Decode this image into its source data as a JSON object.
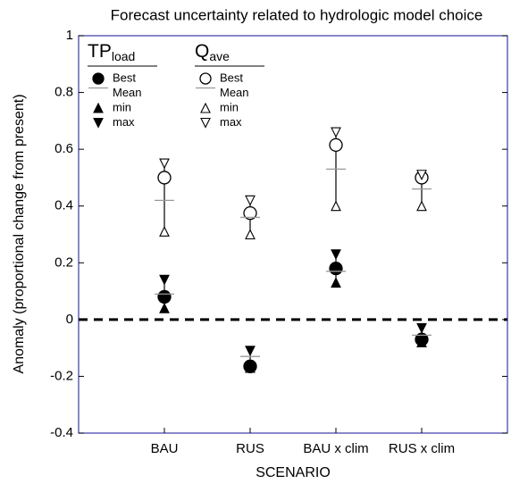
{
  "chart_data": {
    "type": "errorbar",
    "title": "Forecast uncertainty related to hydrologic model choice",
    "xlabel": "SCENARIO",
    "ylabel": "Anomaly (proportional change from present)",
    "categories": [
      "BAU",
      "RUS",
      "BAU x clim",
      "RUS x clim"
    ],
    "ylim": [
      -0.4,
      1
    ],
    "yticks": [
      -0.4,
      -0.2,
      0,
      0.2,
      0.4,
      0.6,
      0.8,
      1
    ],
    "zero_line": true,
    "groups": [
      {
        "title": "TP",
        "subscript": "load",
        "filled": true,
        "color": "#000000",
        "series": [
          {
            "name": "Best",
            "marker": "circle",
            "values": [
              0.08,
              -0.165,
              0.18,
              -0.07
            ]
          },
          {
            "name": "Mean",
            "marker": "dash",
            "color": "#999999",
            "values": [
              0.09,
              -0.13,
              0.17,
              -0.055
            ]
          },
          {
            "name": "min",
            "marker": "triangle-up",
            "values": [
              0.04,
              -0.17,
              0.13,
              -0.08
            ]
          },
          {
            "name": "max",
            "marker": "triangle-down",
            "values": [
              0.14,
              -0.11,
              0.23,
              -0.03
            ]
          }
        ]
      },
      {
        "title": "Q",
        "subscript": "ave",
        "filled": false,
        "color": "#000000",
        "series": [
          {
            "name": "Best",
            "marker": "circle",
            "values": [
              0.5,
              0.375,
              0.615,
              0.5
            ]
          },
          {
            "name": "Mean",
            "marker": "dash",
            "color": "#999999",
            "values": [
              0.42,
              0.36,
              0.53,
              0.46
            ]
          },
          {
            "name": "min",
            "marker": "triangle-up",
            "values": [
              0.31,
              0.3,
              0.4,
              0.4
            ]
          },
          {
            "name": "max",
            "marker": "triangle-down",
            "values": [
              0.55,
              0.42,
              0.66,
              0.51
            ]
          }
        ]
      }
    ]
  }
}
